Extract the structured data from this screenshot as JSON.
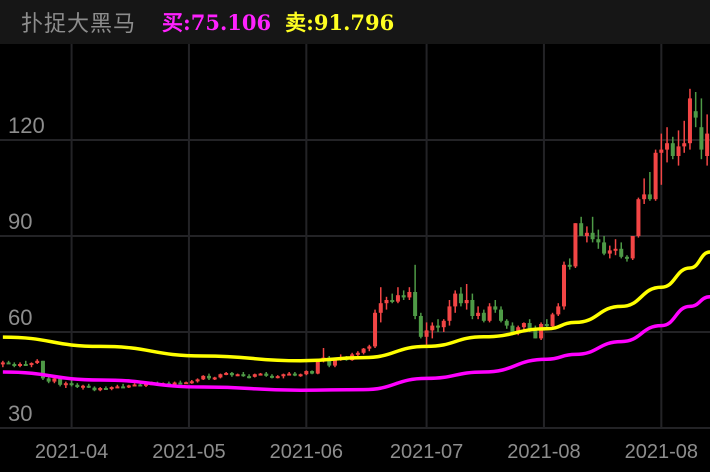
{
  "header": {
    "title": "扑捉大黑马",
    "buy_label": "买:75.106",
    "sell_label": "卖:91.796",
    "buy_color": "#ff22ff",
    "sell_color": "#ffff22"
  },
  "chart_data": {
    "type": "candlestick",
    "ylim": [
      30,
      135
    ],
    "grid": true,
    "y_ticks": [
      30,
      60,
      90,
      120
    ],
    "x_ticks": [
      {
        "index": 12,
        "label": "2021-04"
      },
      {
        "index": 32.5,
        "label": "2021-05"
      },
      {
        "index": 53,
        "label": "2021-06"
      },
      {
        "index": 74,
        "label": "2021-07"
      },
      {
        "index": 94.5,
        "label": "2021-08"
      },
      {
        "index": 115,
        "label": "2021-08"
      }
    ],
    "up_color": "#f24545",
    "down_color": "#4e9a46",
    "candles_ohlc": [
      [
        50,
        51,
        49,
        50.5
      ],
      [
        50.5,
        51,
        50,
        50
      ],
      [
        50,
        50.5,
        49,
        49.5
      ],
      [
        49.5,
        50.5,
        49,
        50
      ],
      [
        50,
        51,
        49.5,
        49.8
      ],
      [
        49.8,
        50.5,
        49,
        50.3
      ],
      [
        50.3,
        51.5,
        50,
        51
      ],
      [
        51,
        51,
        45,
        45.5
      ],
      [
        45.5,
        46,
        44,
        44.5
      ],
      [
        44.5,
        46,
        44,
        45.5
      ],
      [
        45.5,
        46,
        43,
        43.5
      ],
      [
        43.5,
        44.5,
        42.5,
        44
      ],
      [
        44,
        45,
        43,
        43.5
      ],
      [
        43.5,
        44,
        42.5,
        42.8
      ],
      [
        42.8,
        43.5,
        42,
        43.2
      ],
      [
        43.2,
        43.8,
        42.5,
        42.6
      ],
      [
        42.6,
        43,
        41.5,
        41.8
      ],
      [
        41.8,
        42.8,
        41.5,
        42.5
      ],
      [
        42.5,
        43,
        42,
        42.2
      ],
      [
        42.2,
        43,
        41.8,
        42.8
      ],
      [
        42.8,
        43.5,
        42.5,
        43
      ],
      [
        43,
        43.8,
        42.6,
        42.7
      ],
      [
        42.7,
        43.5,
        42.5,
        43.3
      ],
      [
        43.3,
        44,
        43,
        43.6
      ],
      [
        43.6,
        44,
        43,
        43.2
      ],
      [
        43.2,
        44,
        42.8,
        43.8
      ],
      [
        43.8,
        44.5,
        43.5,
        44
      ],
      [
        44,
        44.5,
        43.5,
        43.7
      ],
      [
        43.7,
        44.2,
        43.2,
        44
      ],
      [
        44,
        44.5,
        43.6,
        43.8
      ],
      [
        43.8,
        44.5,
        43.5,
        44.2
      ],
      [
        44.2,
        44.8,
        43.8,
        44
      ],
      [
        44,
        44.5,
        43.8,
        44.3
      ],
      [
        44.3,
        45,
        43.8,
        44.6
      ],
      [
        44.6,
        45.5,
        44.2,
        45.2
      ],
      [
        45.2,
        46.5,
        45,
        46.3
      ],
      [
        46.3,
        47,
        45,
        45.5
      ],
      [
        45.5,
        46,
        45,
        45.8
      ],
      [
        45.8,
        47,
        45.5,
        46.8
      ],
      [
        46.8,
        47.5,
        46.5,
        47.2
      ],
      [
        47.2,
        47.5,
        46,
        46.5
      ],
      [
        46.5,
        47,
        46.2,
        46.8
      ],
      [
        46.8,
        47.5,
        46,
        46.2
      ],
      [
        46.2,
        46.8,
        45.5,
        46
      ],
      [
        46,
        47,
        45.8,
        46.8
      ],
      [
        46.8,
        47.2,
        46.5,
        47
      ],
      [
        47,
        47.5,
        46,
        46.3
      ],
      [
        46.3,
        46.8,
        45.5,
        45.8
      ],
      [
        45.8,
        46.5,
        45.5,
        46.2
      ],
      [
        46.2,
        47,
        45.5,
        46.8
      ],
      [
        46.8,
        47.5,
        46.5,
        47
      ],
      [
        47,
        47.5,
        46.2,
        46.5
      ],
      [
        46.5,
        47,
        46,
        46.8
      ],
      [
        46.8,
        48,
        46.5,
        47.8
      ],
      [
        47.8,
        48,
        46.8,
        47
      ],
      [
        47,
        51.5,
        46.8,
        51
      ],
      [
        51,
        55,
        50.5,
        52
      ],
      [
        52,
        52.5,
        49,
        49.5
      ],
      [
        49.5,
        52,
        49,
        51.5
      ],
      [
        51.5,
        53,
        51,
        52
      ],
      [
        52,
        52.5,
        51,
        51.2
      ],
      [
        51.2,
        53.5,
        51,
        53
      ],
      [
        53,
        54,
        52.5,
        53.5
      ],
      [
        53.5,
        55,
        53,
        54.8
      ],
      [
        54.8,
        56,
        54,
        55.5
      ],
      [
        55.5,
        67,
        55,
        66
      ],
      [
        66,
        74,
        63,
        69
      ],
      [
        69,
        71,
        67,
        70
      ],
      [
        70,
        72,
        69,
        69.5
      ],
      [
        69.5,
        74,
        69,
        71.5
      ],
      [
        71.5,
        73,
        70,
        70.8
      ],
      [
        70.8,
        74,
        70,
        72.5
      ],
      [
        72.5,
        81,
        64,
        65
      ],
      [
        65,
        66,
        58,
        58.5
      ],
      [
        58.5,
        63,
        56,
        60.5
      ],
      [
        60.5,
        63,
        58,
        62
      ],
      [
        62,
        64,
        60,
        61.5
      ],
      [
        61.5,
        64,
        60,
        63.5
      ],
      [
        63.5,
        70,
        62,
        68
      ],
      [
        68,
        73,
        66,
        72
      ],
      [
        72,
        74,
        68,
        69
      ],
      [
        69,
        75,
        67,
        70
      ],
      [
        70,
        72,
        64,
        65
      ],
      [
        65,
        68,
        64,
        66
      ],
      [
        66,
        67,
        63,
        63.5
      ],
      [
        63.5,
        69,
        63,
        68
      ],
      [
        68,
        70,
        66,
        67
      ],
      [
        67,
        68,
        63,
        63.5
      ],
      [
        63.5,
        64,
        61,
        62
      ],
      [
        62,
        63,
        59,
        59.5
      ],
      [
        59.5,
        62,
        59,
        61.5
      ],
      [
        61.5,
        63,
        60,
        62.8
      ],
      [
        62.8,
        64,
        60,
        61
      ],
      [
        61,
        62,
        58,
        58
      ],
      [
        58,
        63,
        57.5,
        62.5
      ],
      [
        62.5,
        64,
        61,
        61.8
      ],
      [
        61.8,
        66,
        61,
        65.5
      ],
      [
        65.5,
        69,
        65,
        68
      ],
      [
        68,
        82,
        67,
        81
      ],
      [
        81,
        83,
        79.5,
        80.5
      ],
      [
        80.5,
        94,
        80,
        94
      ],
      [
        94,
        96,
        92,
        90
      ],
      [
        90,
        93,
        88,
        91
      ],
      [
        91,
        96,
        88,
        89
      ],
      [
        89,
        92,
        86,
        88
      ],
      [
        88,
        90,
        84,
        84.5
      ],
      [
        84.5,
        87,
        83,
        85.5
      ],
      [
        85.5,
        89,
        84,
        86
      ],
      [
        86,
        88,
        83,
        83.5
      ],
      [
        83.5,
        84,
        82,
        83
      ],
      [
        83,
        90,
        82.5,
        90
      ],
      [
        90,
        102,
        89.5,
        101.5
      ],
      [
        101.5,
        108,
        100,
        103
      ],
      [
        103,
        110,
        101,
        101.5
      ],
      [
        101.5,
        117,
        101,
        116
      ],
      [
        116,
        122,
        106,
        117
      ],
      [
        117,
        124,
        113,
        119
      ],
      [
        119,
        121,
        114,
        115
      ],
      [
        115,
        123,
        112,
        118
      ],
      [
        118,
        126,
        116,
        119
      ],
      [
        119,
        136,
        117,
        133
      ],
      [
        129,
        135,
        124,
        127
      ],
      [
        124,
        133,
        114,
        117
      ],
      [
        115,
        128,
        112,
        122
      ]
    ],
    "series": [
      {
        "color": "#ffff00",
        "points": [
          [
            0,
            58.4
          ],
          [
            17,
            55.5
          ],
          [
            35,
            52.5
          ],
          [
            52,
            51
          ],
          [
            63,
            52
          ],
          [
            74,
            55.5
          ],
          [
            84,
            58.5
          ],
          [
            95,
            61
          ],
          [
            100,
            63
          ],
          [
            108,
            68
          ],
          [
            115,
            74
          ],
          [
            120,
            80
          ],
          [
            123.5,
            85
          ]
        ]
      },
      {
        "color": "#ff00ff",
        "points": [
          [
            0,
            47.5
          ],
          [
            17,
            45
          ],
          [
            35,
            42.8
          ],
          [
            52,
            41.8
          ],
          [
            63,
            42
          ],
          [
            74,
            45.5
          ],
          [
            84,
            47.5
          ],
          [
            95,
            51.5
          ],
          [
            100,
            53
          ],
          [
            108,
            57
          ],
          [
            115,
            62
          ],
          [
            120,
            68
          ],
          [
            123.5,
            71
          ]
        ]
      }
    ]
  }
}
